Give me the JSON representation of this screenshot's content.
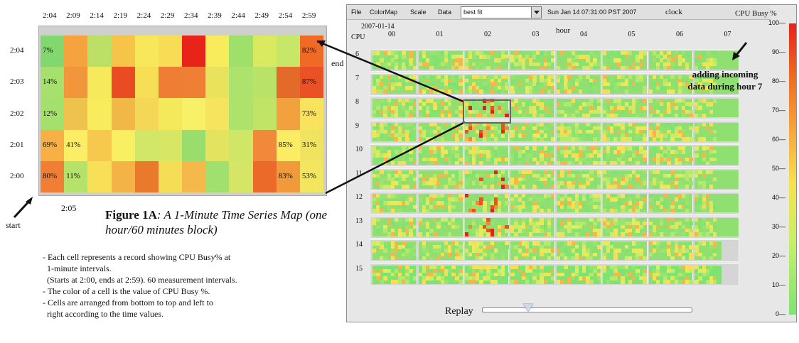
{
  "figure": {
    "top_times": [
      "2:04",
      "2:09",
      "2:14",
      "2:19",
      "2:24",
      "2:29",
      "2:34",
      "2:39",
      "2:44",
      "2:49",
      "2:54",
      "2:59"
    ],
    "row_times": [
      "2:04",
      "2:03",
      "2:02",
      "2:01",
      "2:00"
    ],
    "bottom_time": "2:05",
    "labels": {
      "start": "start",
      "end": "end"
    },
    "cells": [
      [
        "#82d86e",
        "#f5a33e",
        "#bcdf66",
        "#f6c449",
        "#f9e75b",
        "#f7dc55",
        "#e8231a",
        "#f8ec5d",
        "#9fe06b",
        "#d9ea61",
        "#c7e769",
        "#ef6a24"
      ],
      [
        "#a6e06e",
        "#f2963c",
        "#f6ea5c",
        "#e94b23",
        "#f6de56",
        "#ef7d34",
        "#f07f36",
        "#e8e25c",
        "#ade36c",
        "#b8e268",
        "#e46a2a",
        "#ea5225"
      ],
      [
        "#a3e06c",
        "#eec24d",
        "#f8ec5c",
        "#f2b847",
        "#f5d758",
        "#f4e95a",
        "#f9f06a",
        "#f7e45e",
        "#ade36b",
        "#c2e466",
        "#f1a23f",
        "#f9e25d"
      ],
      [
        "#f6b046",
        "#fbed66",
        "#f6c94e",
        "#f9ef62",
        "#d2e667",
        "#d7e664",
        "#99de6d",
        "#e3e35f",
        "#cfe666",
        "#f0893a",
        "#fbec64",
        "#f0e35f"
      ],
      [
        "#f07f35",
        "#b5e269",
        "#f7df57",
        "#f3b347",
        "#ea7a2b",
        "#f5dd56",
        "#f5b84a",
        "#9fe06e",
        "#d5e566",
        "#eb6a2a",
        "#f09a3b",
        "#f2e65f"
      ]
    ],
    "values": [
      {
        "row": 0,
        "col": 0,
        "text": "7%"
      },
      {
        "row": 0,
        "col": 11,
        "text": "82%"
      },
      {
        "row": 1,
        "col": 0,
        "text": "14%"
      },
      {
        "row": 1,
        "col": 11,
        "text": "87%"
      },
      {
        "row": 2,
        "col": 0,
        "text": "12%"
      },
      {
        "row": 2,
        "col": 11,
        "text": "73%"
      },
      {
        "row": 3,
        "col": 0,
        "text": "69%"
      },
      {
        "row": 3,
        "col": 1,
        "text": "41%"
      },
      {
        "row": 3,
        "col": 10,
        "text": "85%"
      },
      {
        "row": 3,
        "col": 11,
        "text": "31%"
      },
      {
        "row": 4,
        "col": 0,
        "text": "80%"
      },
      {
        "row": 4,
        "col": 1,
        "text": "11%"
      },
      {
        "row": 4,
        "col": 10,
        "text": "83%"
      },
      {
        "row": 4,
        "col": 11,
        "text": "53%"
      }
    ],
    "caption_bold": "Figure 1A",
    "caption_italic": ": A 1-Minute Time Series Map (one hour/60 minutes block)",
    "notes": [
      "- Each cell represents a record showing CPU Busy% at",
      "  1-minute intervals.",
      "  (Starts at 2:00, ends at 2:59). 60 measurement intervals.",
      "- The color of a cell is the value of CPU Busy %.",
      "- Cells are arranged from bottom to top and left to",
      "  right according to the time values."
    ]
  },
  "app": {
    "menu": [
      "File",
      "ColorMap",
      "Scale",
      "Data"
    ],
    "data_select_value": "best fit",
    "timestamp": "Sun Jan 14 07:31:00 PST 2007",
    "clock_label": "clock",
    "date_label": "2007-01-14",
    "hour_label": "hour",
    "hour_ticks": [
      "00",
      "01",
      "02",
      "03",
      "04",
      "05",
      "06",
      "07"
    ],
    "cpu_axis_label": "CPU",
    "cpu_rows": [
      "6",
      "7",
      "8",
      "9",
      "10",
      "11",
      "12",
      "13",
      "14",
      "15"
    ],
    "row_fill_blocks": [
      8,
      8,
      8,
      8,
      8,
      8,
      8,
      8,
      8,
      0
    ],
    "replay_label": "Replay",
    "replay_position": 0.22,
    "annotation": "adding incoming data during hour 7"
  },
  "colorscale": {
    "title": "CPU Busy %",
    "ticks": [
      "100",
      "90",
      "80",
      "70",
      "60",
      "50",
      "40",
      "30",
      "20",
      "10",
      "0"
    ]
  }
}
